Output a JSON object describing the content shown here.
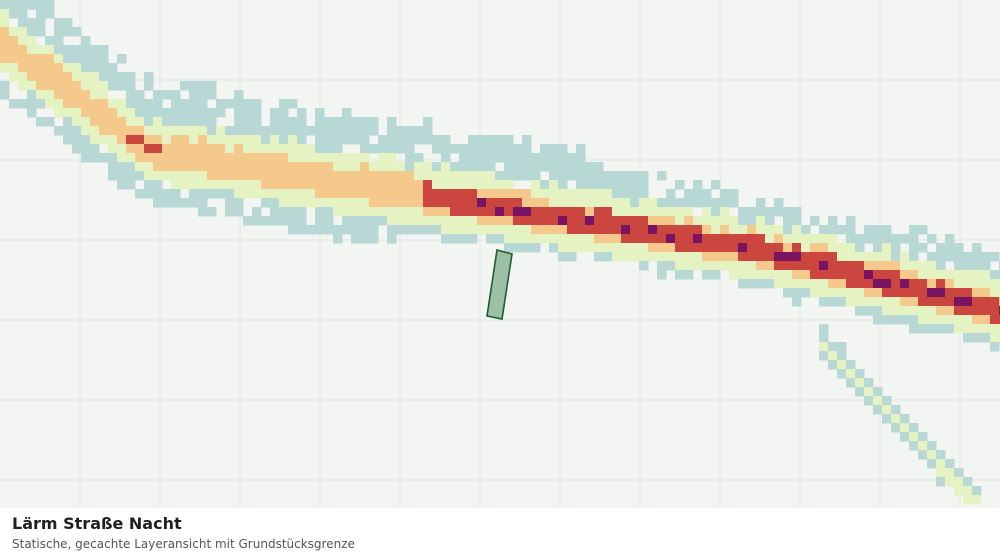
{
  "caption": {
    "title": "Lärm Straße Nacht",
    "subtitle": "Statische, gecachte Layeransicht mit Grundstücksgrenze"
  },
  "colors": {
    "background": "#f3f5f3",
    "grid": "#e2e6e2",
    "level_1": "#b8d8d6",
    "level_2": "#e5f2c2",
    "level_3": "#f5c88c",
    "level_4": "#cc4640",
    "level_5": "#7a1460",
    "parcel_fill": "#9dbfa6",
    "parcel_stroke": "#1f5e2e"
  },
  "layer": {
    "name": "noise-road-night",
    "legend_levels": [
      "level_1",
      "level_2",
      "level_3",
      "level_4",
      "level_5"
    ]
  }
}
